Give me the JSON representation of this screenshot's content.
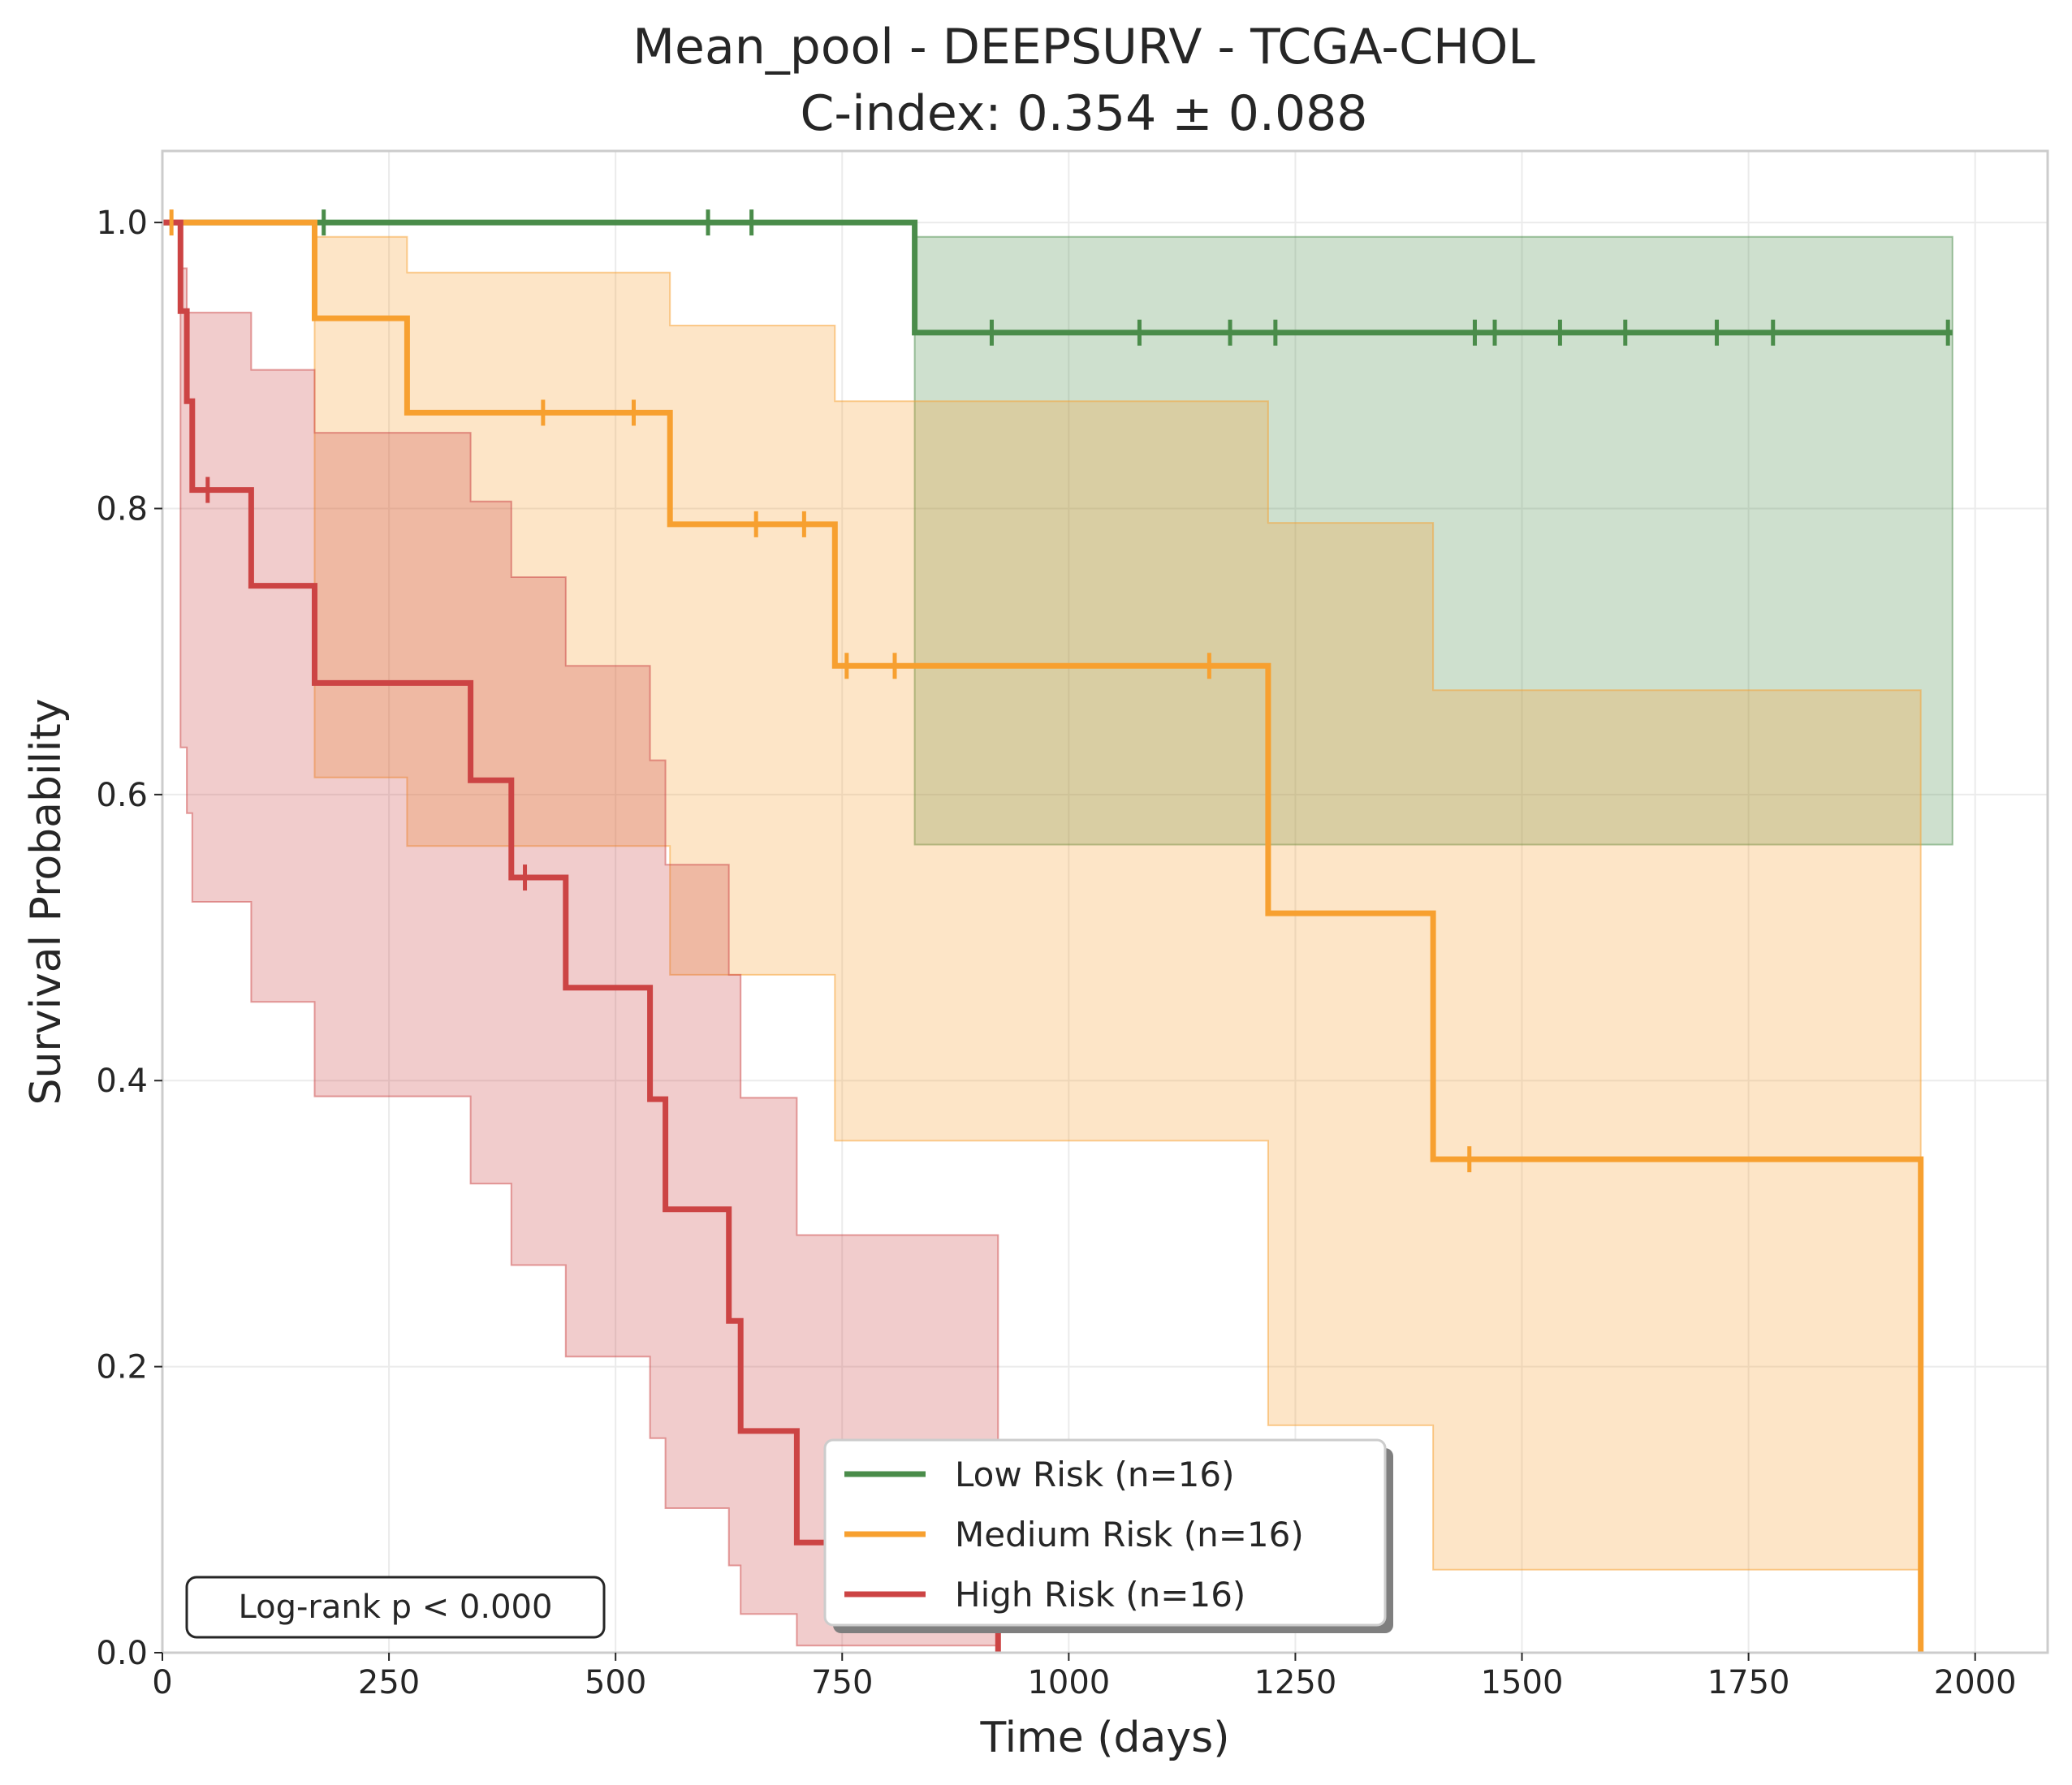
{
  "chart_data": {
    "type": "line",
    "subtype": "kaplan-meier step",
    "title": "Mean_pool - DEEPSURV - TCGA-CHOL",
    "subtitle": "C-index: 0.354 ± 0.088",
    "xlabel": "Time (days)",
    "ylabel": "Survival Probability",
    "xlim": [
      0,
      2080
    ],
    "ylim": [
      0,
      1.05
    ],
    "xticks": [
      0,
      250,
      500,
      750,
      1000,
      1250,
      1500,
      1750,
      2000
    ],
    "yticks": [
      0.0,
      0.2,
      0.4,
      0.6,
      0.8,
      1.0
    ],
    "xtick_labels": [
      "0",
      "250",
      "500",
      "750",
      "1000",
      "1250",
      "1500",
      "1750",
      "2000"
    ],
    "ytick_labels": [
      "0.0",
      "0.2",
      "0.4",
      "0.6",
      "0.8",
      "1.0"
    ],
    "grid": true,
    "legend_position": "lower center",
    "annotation": "Log-rank p < 0.000",
    "series": [
      {
        "name": "Low Risk (n=16)",
        "color": "#4a8c4a",
        "steps": [
          [
            0,
            1.0
          ],
          [
            830,
            0.923
          ],
          [
            1975,
            0.923
          ]
        ],
        "ci": [
          [
            0,
            1.0,
            1.0
          ],
          [
            830,
            0.565,
            0.99
          ],
          [
            1975,
            0.565,
            0.99
          ]
        ],
        "censored": [
          [
            178,
            1.0
          ],
          [
            602,
            1.0
          ],
          [
            650,
            1.0
          ],
          [
            915,
            0.923
          ],
          [
            1078,
            0.923
          ],
          [
            1178,
            0.923
          ],
          [
            1228,
            0.923
          ],
          [
            1448,
            0.923
          ],
          [
            1470,
            0.923
          ],
          [
            1542,
            0.923
          ],
          [
            1614,
            0.923
          ],
          [
            1715,
            0.923
          ],
          [
            1777,
            0.923
          ],
          [
            1970,
            0.923
          ]
        ]
      },
      {
        "name": "Medium Risk (n=16)",
        "color": "#f7a030",
        "steps": [
          [
            0,
            1.0
          ],
          [
            168,
            0.933
          ],
          [
            270,
            0.867
          ],
          [
            560,
            0.789
          ],
          [
            742,
            0.69
          ],
          [
            1220,
            0.517
          ],
          [
            1402,
            0.345
          ],
          [
            1940,
            0.0
          ]
        ],
        "ci": [
          [
            0,
            1.0,
            1.0
          ],
          [
            168,
            0.612,
            0.99
          ],
          [
            270,
            0.564,
            0.965
          ],
          [
            560,
            0.474,
            0.928
          ],
          [
            742,
            0.358,
            0.875
          ],
          [
            1220,
            0.159,
            0.79
          ],
          [
            1402,
            0.058,
            0.673
          ],
          [
            1940,
            0.058,
            0.673
          ]
        ],
        "censored": [
          [
            10,
            1.0
          ],
          [
            420,
            0.867
          ],
          [
            520,
            0.867
          ],
          [
            655,
            0.789
          ],
          [
            708,
            0.789
          ],
          [
            755,
            0.69
          ],
          [
            808,
            0.69
          ],
          [
            1155,
            0.69
          ],
          [
            1442,
            0.345
          ]
        ]
      },
      {
        "name": "High Risk (n=16)",
        "color": "#cc4444",
        "steps": [
          [
            0,
            1.0
          ],
          [
            20,
            0.938
          ],
          [
            27,
            0.875
          ],
          [
            33,
            0.813
          ],
          [
            98,
            0.746
          ],
          [
            168,
            0.678
          ],
          [
            340,
            0.61
          ],
          [
            385,
            0.542
          ],
          [
            445,
            0.465
          ],
          [
            538,
            0.387
          ],
          [
            555,
            0.31
          ],
          [
            625,
            0.232
          ],
          [
            638,
            0.155
          ],
          [
            700,
            0.077
          ],
          [
            922,
            0.0
          ]
        ],
        "ci": [
          [
            0,
            1.0,
            1.0
          ],
          [
            20,
            0.633,
            0.968
          ],
          [
            27,
            0.587,
            0.937
          ],
          [
            33,
            0.525,
            0.937
          ],
          [
            98,
            0.455,
            0.897
          ],
          [
            168,
            0.389,
            0.853
          ],
          [
            340,
            0.328,
            0.805
          ],
          [
            385,
            0.271,
            0.752
          ],
          [
            445,
            0.207,
            0.69
          ],
          [
            538,
            0.15,
            0.624
          ],
          [
            555,
            0.101,
            0.551
          ],
          [
            625,
            0.061,
            0.474
          ],
          [
            638,
            0.027,
            0.388
          ],
          [
            700,
            0.005,
            0.292
          ],
          [
            922,
            0.005,
            0.292
          ]
        ],
        "censored": [
          [
            50,
            0.813
          ],
          [
            400,
            0.542
          ]
        ]
      }
    ]
  }
}
